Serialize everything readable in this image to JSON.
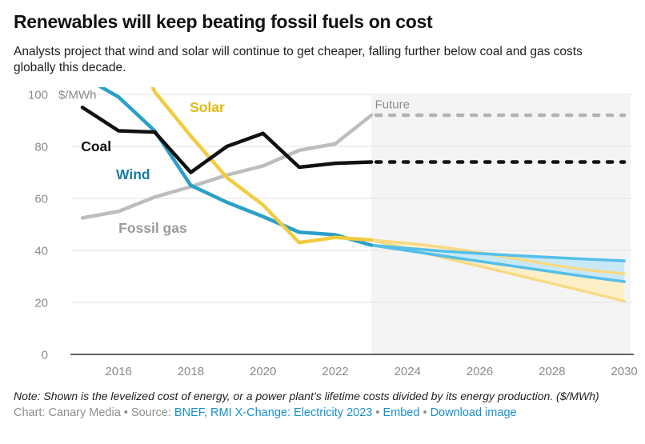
{
  "header": {
    "title": "Renewables will keep beating fossil fuels on cost",
    "subtitle": "Analysts project that wind and solar will continue to get cheaper, falling further below coal and gas costs globally this decade."
  },
  "chart_data": {
    "type": "line",
    "unit_label": "$/MWh",
    "future_label": {
      "text": "Future",
      "x": 2023.1,
      "y": 94.6,
      "color": "#8c8c8c"
    },
    "ylim": [
      0,
      103
    ],
    "xlim": [
      2015,
      2030
    ],
    "yticks": [
      0,
      20,
      40,
      60,
      80,
      100
    ],
    "xticks": [
      2016,
      2018,
      2020,
      2022,
      2024,
      2026,
      2028,
      2030
    ],
    "future_start": 2023,
    "colors": {
      "grid": "#e3e3e3",
      "axis": "#2f2f2f",
      "tick_labels": "#8b8b8b",
      "future_region": "#f4f4f4"
    },
    "series_hist": [
      {
        "name": "Fossil gas",
        "color": "#bdbdbd",
        "label_color": "#9c9c9c",
        "years": [
          2015,
          2016,
          2017,
          2018,
          2019,
          2020,
          2021,
          2022,
          2023
        ],
        "values": [
          52.5,
          55,
          60.5,
          64.5,
          69,
          72.5,
          78.5,
          81,
          92
        ],
        "label": {
          "text": "Fossil gas",
          "x": 2016.0,
          "y": 46.8
        }
      },
      {
        "name": "Wind",
        "color": "#2aa0c8",
        "label_color": "#1a7ca3",
        "years": [
          2015,
          2016,
          2017,
          2018,
          2019,
          2020,
          2021,
          2022,
          2023
        ],
        "values": [
          107,
          99,
          86,
          65,
          58.5,
          53,
          47,
          46,
          42
        ],
        "label": {
          "text": "Wind",
          "x": 2015.93,
          "y": 67.4
        }
      },
      {
        "name": "Solar",
        "color": "#f2cc40",
        "label_color": "#e0ba10",
        "years": [
          2016,
          2017,
          2018,
          2019,
          2020,
          2021,
          2022,
          2023
        ],
        "values": [
          135,
          101,
          84,
          68,
          57.5,
          43,
          45,
          44
        ],
        "label": {
          "text": "Solar",
          "x": 2017.97,
          "y": 93.2
        }
      },
      {
        "name": "Coal",
        "color": "#111111",
        "label_color": "#111111",
        "years": [
          2015,
          2016,
          2017,
          2018,
          2019,
          2020,
          2021,
          2022,
          2023
        ],
        "values": [
          95,
          86,
          85.5,
          70,
          80,
          85,
          72,
          73.5,
          74
        ],
        "label": {
          "text": "Coal",
          "x": 2014.96,
          "y": 78.2
        }
      }
    ],
    "series_future_dashed": [
      {
        "name": "Fossil gas projection",
        "color": "#b3b3b3",
        "value": 92,
        "start": 2023,
        "end": 2030
      },
      {
        "name": "Coal projection",
        "color": "#111111",
        "value": 74,
        "start": 2023,
        "end": 2030
      }
    ],
    "bands_future": [
      {
        "name": "Solar projection range",
        "fill": "#fcefc8",
        "line_color": "#f8da85",
        "years": [
          2023,
          2024,
          2025,
          2026,
          2027,
          2028,
          2029,
          2030
        ],
        "upper": [
          44,
          42.8,
          41.2,
          39.2,
          36.8,
          34.4,
          32.4,
          31
        ],
        "lower": [
          44,
          40.6,
          37.2,
          33.9,
          30.6,
          27.3,
          23.9,
          20.5
        ]
      },
      {
        "name": "Wind projection range",
        "fill": "#c9e8f6",
        "line_color": "#54bfe9",
        "years": [
          2023,
          2024,
          2025,
          2026,
          2027,
          2028,
          2029,
          2030
        ],
        "upper": [
          42,
          40.8,
          39.7,
          38.8,
          38.0,
          37.3,
          36.6,
          36
        ],
        "lower": [
          42,
          39.9,
          37.8,
          35.8,
          33.8,
          31.8,
          29.8,
          28
        ]
      }
    ]
  },
  "footer": {
    "note": "Note: Shown is the levelized cost of energy, or a power plant’s lifetime costs divided by its energy production. ($/MWh)",
    "credit_prefix": "Chart: Canary Media • Source: ",
    "source_link": "BNEF, RMI X-Change: Electricity 2023",
    "separator": " • ",
    "embed_link": "Embed",
    "download_link": "Download image",
    "link_color": "#1a8fd1"
  }
}
